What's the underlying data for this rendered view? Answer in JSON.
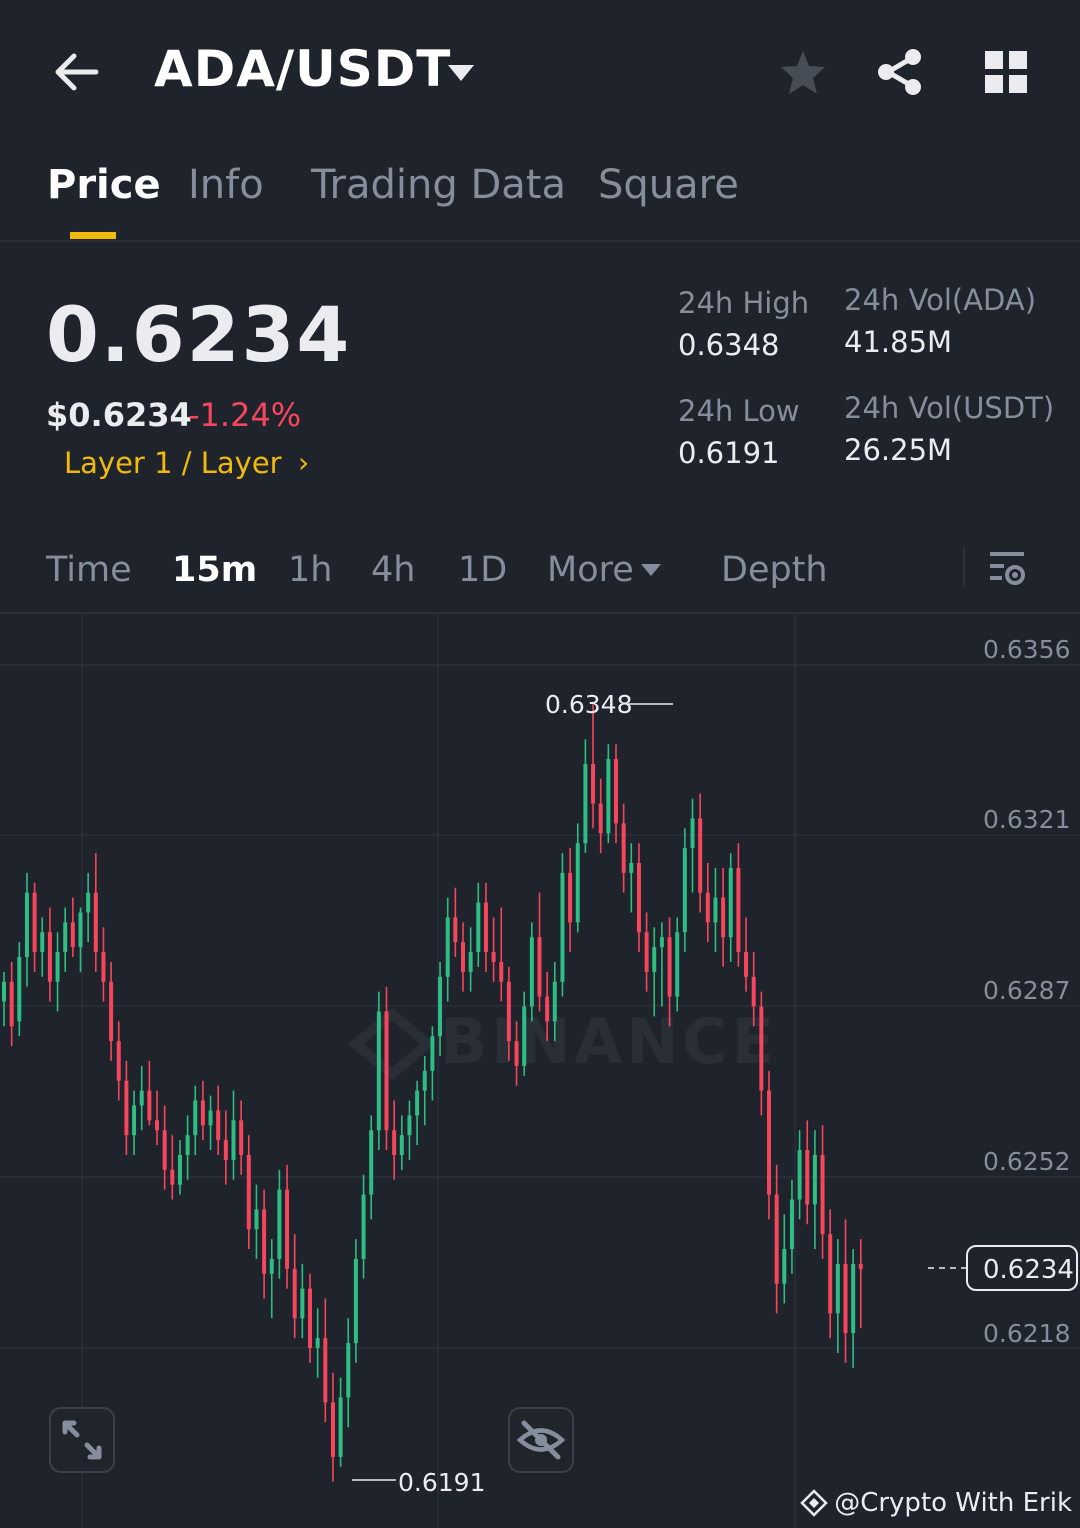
{
  "header": {
    "pair": "ADA/USDT"
  },
  "tabs": [
    {
      "label": "Price",
      "active": true
    },
    {
      "label": "Info"
    },
    {
      "label": "Trading Data"
    },
    {
      "label": "Square"
    }
  ],
  "ticker": {
    "last_price": "0.6234",
    "usd_price": "$0.6234",
    "change": "-1.24%",
    "tag": "Layer 1 / Layer",
    "high_label": "24h High",
    "high_value": "0.6348",
    "low_label": "24h Low",
    "low_value": "0.6191",
    "vol_ada_label": "24h Vol(ADA)",
    "vol_ada_value": "41.85M",
    "vol_usdt_label": "24h Vol(USDT)",
    "vol_usdt_value": "26.25M"
  },
  "intervals": [
    {
      "label": "Time"
    },
    {
      "label": "15m",
      "active": true
    },
    {
      "label": "1h"
    },
    {
      "label": "4h"
    },
    {
      "label": "1D"
    },
    {
      "label": "More"
    },
    {
      "label": "Depth"
    }
  ],
  "chart": {
    "watermark": "BINANCE",
    "y_ticks": [
      "0.6356",
      "0.6321",
      "0.6287",
      "0.6252",
      "0.6218"
    ],
    "high_label": "0.6348",
    "low_label": "0.6191",
    "current_price": "0.6234"
  },
  "chart_data": {
    "type": "candlestick",
    "interval": "15m",
    "y_ticks": [
      0.6356,
      0.6321,
      0.6287,
      0.6252,
      0.6218
    ],
    "ylim": [
      0.6186,
      0.6369
    ],
    "annotations": {
      "high": 0.6348,
      "low": 0.6191,
      "last": 0.6234
    },
    "colors": {
      "up": "#2ebd85",
      "down": "#f6465d"
    },
    "candles": [
      [
        0.6288,
        0.6294,
        0.6283,
        0.6292
      ],
      [
        0.6292,
        0.6296,
        0.6279,
        0.6283
      ],
      [
        0.6284,
        0.63,
        0.6281,
        0.6297
      ],
      [
        0.6297,
        0.6314,
        0.6291,
        0.631
      ],
      [
        0.631,
        0.6312,
        0.6294,
        0.6298
      ],
      [
        0.6298,
        0.6305,
        0.6293,
        0.6302
      ],
      [
        0.6302,
        0.6307,
        0.6288,
        0.6292
      ],
      [
        0.6292,
        0.6302,
        0.6286,
        0.6298
      ],
      [
        0.6298,
        0.6307,
        0.6294,
        0.6304
      ],
      [
        0.6304,
        0.6309,
        0.6297,
        0.6299
      ],
      [
        0.6299,
        0.6307,
        0.6294,
        0.6306
      ],
      [
        0.6306,
        0.6314,
        0.63,
        0.631
      ],
      [
        0.631,
        0.6318,
        0.6294,
        0.6298
      ],
      [
        0.6298,
        0.6303,
        0.6288,
        0.6292
      ],
      [
        0.6292,
        0.6296,
        0.6276,
        0.628
      ],
      [
        0.628,
        0.6284,
        0.6268,
        0.6272
      ],
      [
        0.6272,
        0.6276,
        0.6257,
        0.6261
      ],
      [
        0.6261,
        0.627,
        0.6257,
        0.6267
      ],
      [
        0.6267,
        0.6275,
        0.6262,
        0.627
      ],
      [
        0.627,
        0.6276,
        0.6263,
        0.6264
      ],
      [
        0.6264,
        0.627,
        0.6259,
        0.6262
      ],
      [
        0.6262,
        0.6267,
        0.625,
        0.6254
      ],
      [
        0.6254,
        0.6261,
        0.6248,
        0.6251
      ],
      [
        0.6251,
        0.626,
        0.6249,
        0.6257
      ],
      [
        0.6257,
        0.6265,
        0.6252,
        0.6261
      ],
      [
        0.6261,
        0.6271,
        0.6257,
        0.6268
      ],
      [
        0.6268,
        0.6272,
        0.626,
        0.6263
      ],
      [
        0.6263,
        0.6269,
        0.6258,
        0.6266
      ],
      [
        0.6266,
        0.6271,
        0.6257,
        0.626
      ],
      [
        0.626,
        0.6266,
        0.6251,
        0.6256
      ],
      [
        0.6256,
        0.627,
        0.6252,
        0.6264
      ],
      [
        0.6264,
        0.6268,
        0.6253,
        0.6257
      ],
      [
        0.6257,
        0.6261,
        0.6238,
        0.6242
      ],
      [
        0.6242,
        0.6251,
        0.6236,
        0.6246
      ],
      [
        0.6246,
        0.625,
        0.6228,
        0.6233
      ],
      [
        0.6233,
        0.624,
        0.6224,
        0.6236
      ],
      [
        0.6236,
        0.6254,
        0.6232,
        0.625
      ],
      [
        0.625,
        0.6255,
        0.623,
        0.6234
      ],
      [
        0.6234,
        0.6241,
        0.622,
        0.6224
      ],
      [
        0.6224,
        0.6235,
        0.622,
        0.623
      ],
      [
        0.623,
        0.6233,
        0.6215,
        0.6218
      ],
      [
        0.6218,
        0.6226,
        0.6212,
        0.622
      ],
      [
        0.622,
        0.6228,
        0.6203,
        0.6207
      ],
      [
        0.6207,
        0.6213,
        0.6191,
        0.6196
      ],
      [
        0.6196,
        0.6212,
        0.6194,
        0.6208
      ],
      [
        0.6208,
        0.6224,
        0.6202,
        0.6219
      ],
      [
        0.6219,
        0.624,
        0.6215,
        0.6236
      ],
      [
        0.6236,
        0.6253,
        0.6232,
        0.6249
      ],
      [
        0.6249,
        0.6265,
        0.6244,
        0.6262
      ],
      [
        0.6262,
        0.629,
        0.6258,
        0.6286
      ],
      [
        0.6286,
        0.6291,
        0.6258,
        0.6262
      ],
      [
        0.6262,
        0.6268,
        0.6252,
        0.6257
      ],
      [
        0.6257,
        0.6265,
        0.6254,
        0.6261
      ],
      [
        0.6261,
        0.6268,
        0.6256,
        0.6265
      ],
      [
        0.6265,
        0.6272,
        0.6259,
        0.627
      ],
      [
        0.627,
        0.6277,
        0.6263,
        0.6274
      ],
      [
        0.6274,
        0.6283,
        0.6268,
        0.6281
      ],
      [
        0.6281,
        0.6296,
        0.6277,
        0.6293
      ],
      [
        0.6293,
        0.6309,
        0.6288,
        0.6305
      ],
      [
        0.6305,
        0.6311,
        0.6297,
        0.63
      ],
      [
        0.63,
        0.6304,
        0.629,
        0.6294
      ],
      [
        0.6294,
        0.6303,
        0.629,
        0.6298
      ],
      [
        0.6298,
        0.6312,
        0.6295,
        0.6308
      ],
      [
        0.6308,
        0.6312,
        0.6294,
        0.6298
      ],
      [
        0.6298,
        0.6305,
        0.6292,
        0.6296
      ],
      [
        0.6296,
        0.6307,
        0.6288,
        0.6292
      ],
      [
        0.6292,
        0.6295,
        0.6276,
        0.628
      ],
      [
        0.628,
        0.6284,
        0.6271,
        0.6275
      ],
      [
        0.6275,
        0.629,
        0.6273,
        0.6287
      ],
      [
        0.6287,
        0.6304,
        0.6284,
        0.6301
      ],
      [
        0.6301,
        0.631,
        0.6286,
        0.6289
      ],
      [
        0.6289,
        0.6294,
        0.628,
        0.6284
      ],
      [
        0.6284,
        0.6296,
        0.628,
        0.6292
      ],
      [
        0.6292,
        0.6318,
        0.6289,
        0.6314
      ],
      [
        0.6314,
        0.6319,
        0.6298,
        0.6304
      ],
      [
        0.6304,
        0.6324,
        0.6302,
        0.632
      ],
      [
        0.632,
        0.6341,
        0.6318,
        0.6336
      ],
      [
        0.6336,
        0.6348,
        0.6323,
        0.6328
      ],
      [
        0.6328,
        0.6333,
        0.6318,
        0.6322
      ],
      [
        0.6322,
        0.634,
        0.632,
        0.6337
      ],
      [
        0.6337,
        0.634,
        0.632,
        0.6324
      ],
      [
        0.6324,
        0.6328,
        0.631,
        0.6314
      ],
      [
        0.6314,
        0.632,
        0.6306,
        0.6316
      ],
      [
        0.6316,
        0.632,
        0.6298,
        0.6302
      ],
      [
        0.6302,
        0.6306,
        0.629,
        0.6294
      ],
      [
        0.6294,
        0.6303,
        0.6285,
        0.6299
      ],
      [
        0.6299,
        0.6304,
        0.6287,
        0.6301
      ],
      [
        0.6301,
        0.6305,
        0.6283,
        0.6289
      ],
      [
        0.6289,
        0.6305,
        0.6286,
        0.6302
      ],
      [
        0.6302,
        0.6323,
        0.6298,
        0.6319
      ],
      [
        0.6319,
        0.6329,
        0.631,
        0.6325
      ],
      [
        0.6325,
        0.633,
        0.6306,
        0.631
      ],
      [
        0.631,
        0.6316,
        0.63,
        0.6304
      ],
      [
        0.6304,
        0.6315,
        0.6298,
        0.6309
      ],
      [
        0.6309,
        0.6315,
        0.6295,
        0.6301
      ],
      [
        0.6301,
        0.6318,
        0.6296,
        0.6315
      ],
      [
        0.6315,
        0.632,
        0.6295,
        0.6298
      ],
      [
        0.6298,
        0.6305,
        0.629,
        0.6293
      ],
      [
        0.6293,
        0.6298,
        0.6283,
        0.6287
      ],
      [
        0.6287,
        0.629,
        0.6265,
        0.627
      ],
      [
        0.627,
        0.6274,
        0.6244,
        0.6249
      ],
      [
        0.6249,
        0.6255,
        0.6225,
        0.6231
      ],
      [
        0.6231,
        0.6245,
        0.6227,
        0.6238
      ],
      [
        0.6238,
        0.6252,
        0.6233,
        0.6248
      ],
      [
        0.6248,
        0.6262,
        0.6244,
        0.6258
      ],
      [
        0.6258,
        0.6264,
        0.6243,
        0.6247
      ],
      [
        0.6247,
        0.6262,
        0.6238,
        0.6257
      ],
      [
        0.6257,
        0.6263,
        0.6236,
        0.6241
      ],
      [
        0.6241,
        0.6246,
        0.622,
        0.6225
      ],
      [
        0.6225,
        0.624,
        0.6217,
        0.6235
      ],
      [
        0.6235,
        0.6244,
        0.6215,
        0.6221
      ],
      [
        0.6221,
        0.6238,
        0.6214,
        0.6235
      ],
      [
        0.6235,
        0.624,
        0.6222,
        0.6234
      ]
    ]
  }
}
